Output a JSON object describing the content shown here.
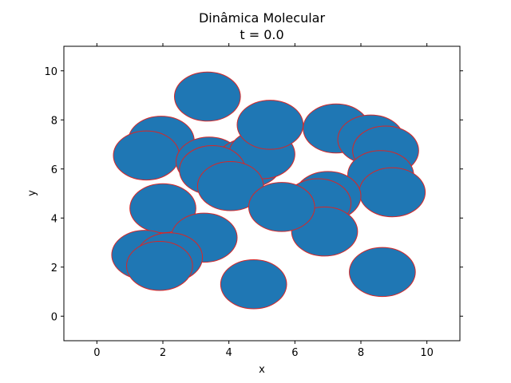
{
  "chart_data": {
    "type": "scatter",
    "title_lines": [
      "Dinâmica Molecular",
      "t =  0.0"
    ],
    "xlabel": "x",
    "ylabel": "y",
    "xlim": [
      -1,
      11
    ],
    "ylim": [
      -1,
      11
    ],
    "xticks": [
      "0",
      "2",
      "4",
      "6",
      "8",
      "10"
    ],
    "yticks": [
      "0",
      "2",
      "4",
      "6",
      "8",
      "10"
    ],
    "particle_radius": 1.0,
    "fill_color": "#1f77b4",
    "edge_color": "#d62728",
    "grid": false,
    "particles": [
      {
        "x": 3.35,
        "y": 8.95
      },
      {
        "x": 1.95,
        "y": 7.15
      },
      {
        "x": 1.5,
        "y": 6.55
      },
      {
        "x": 3.4,
        "y": 6.3
      },
      {
        "x": 4.6,
        "y": 6.25
      },
      {
        "x": 5.0,
        "y": 6.6
      },
      {
        "x": 5.25,
        "y": 7.8
      },
      {
        "x": 3.5,
        "y": 5.95
      },
      {
        "x": 4.05,
        "y": 5.3
      },
      {
        "x": 7.25,
        "y": 7.65
      },
      {
        "x": 8.3,
        "y": 7.2
      },
      {
        "x": 8.75,
        "y": 6.75
      },
      {
        "x": 8.6,
        "y": 5.75
      },
      {
        "x": 8.95,
        "y": 5.05
      },
      {
        "x": 7.0,
        "y": 4.9
      },
      {
        "x": 6.7,
        "y": 4.6
      },
      {
        "x": 6.9,
        "y": 3.45
      },
      {
        "x": 5.6,
        "y": 4.45
      },
      {
        "x": 2.0,
        "y": 4.4
      },
      {
        "x": 3.25,
        "y": 3.2
      },
      {
        "x": 1.45,
        "y": 2.5
      },
      {
        "x": 2.2,
        "y": 2.4
      },
      {
        "x": 1.9,
        "y": 2.05
      },
      {
        "x": 4.75,
        "y": 1.3
      },
      {
        "x": 8.65,
        "y": 1.8
      }
    ]
  }
}
